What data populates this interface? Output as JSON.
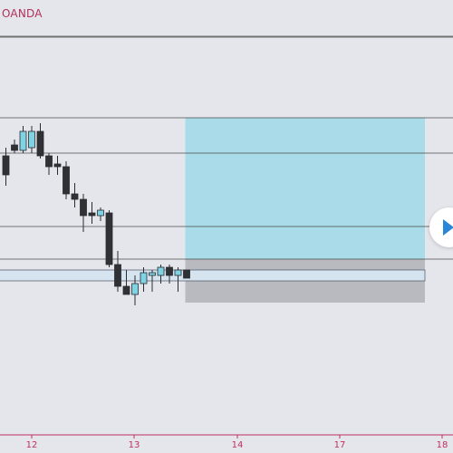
{
  "header": {
    "broker": "OANDA"
  },
  "colors": {
    "background": "#e5e6ec",
    "bull_candle": "#7fd3e3",
    "bear_candle": "#2f3135",
    "target_zone": "#a9dce8",
    "stop_zone": "#b8babf",
    "entry_box": "#d6e4ef",
    "level_line": "#4a4a4a",
    "axis_text": "#c0305e",
    "play_icon": "#2a86d6"
  },
  "controls": {
    "play_icon": "play-icon"
  },
  "chart_data": {
    "type": "candlestick",
    "x_axis": {
      "ticks": [
        "12",
        "13",
        "14",
        "17",
        "18"
      ]
    },
    "price_scale": "relative (no price labels visible)",
    "series": [
      {
        "name": "",
        "candles": [
          {
            "o": 51,
            "h": 54,
            "l": 40,
            "c": 44
          },
          {
            "o": 55,
            "h": 57,
            "l": 52,
            "c": 53
          },
          {
            "o": 53,
            "h": 62,
            "l": 52,
            "c": 60
          },
          {
            "o": 54,
            "h": 62,
            "l": 52,
            "c": 60
          },
          {
            "o": 60,
            "h": 63,
            "l": 50,
            "c": 51
          },
          {
            "o": 51,
            "h": 52,
            "l": 44,
            "c": 47
          },
          {
            "o": 48,
            "h": 51,
            "l": 44,
            "c": 47
          },
          {
            "o": 47,
            "h": 49,
            "l": 35,
            "c": 37
          },
          {
            "o": 37,
            "h": 41,
            "l": 32,
            "c": 35
          },
          {
            "o": 35,
            "h": 37,
            "l": 23,
            "c": 29
          },
          {
            "o": 30,
            "h": 34,
            "l": 26,
            "c": 29
          },
          {
            "o": 29,
            "h": 32,
            "l": 27,
            "c": 31
          },
          {
            "o": 30,
            "h": 31,
            "l": 10,
            "c": 11
          },
          {
            "o": 11,
            "h": 16,
            "l": 1,
            "c": 3
          },
          {
            "o": 3,
            "h": 9,
            "l": 0,
            "c": 0
          },
          {
            "o": 0,
            "h": 7,
            "l": -4,
            "c": 4
          },
          {
            "o": 4,
            "h": 10,
            "l": 1,
            "c": 8
          },
          {
            "o": 7,
            "h": 9,
            "l": 1,
            "c": 8
          },
          {
            "o": 7,
            "h": 11,
            "l": 4,
            "c": 10
          },
          {
            "o": 10,
            "h": 11,
            "l": 4,
            "c": 7
          },
          {
            "o": 7,
            "h": 10,
            "l": 1,
            "c": 9
          },
          {
            "o": 9,
            "h": 9,
            "l": 6,
            "c": 6
          }
        ]
      }
    ],
    "horizontal_levels": [
      95,
      65,
      52,
      25,
      13
    ],
    "position_tool": {
      "side": "long",
      "entry": 13,
      "target": 65,
      "stop": -3,
      "start_bar": 21,
      "end_bar": 47
    },
    "entry_box": {
      "top": 9,
      "bottom": 5,
      "start_bar": -1,
      "end_bar": 47
    },
    "grid": false,
    "legend": "none"
  }
}
